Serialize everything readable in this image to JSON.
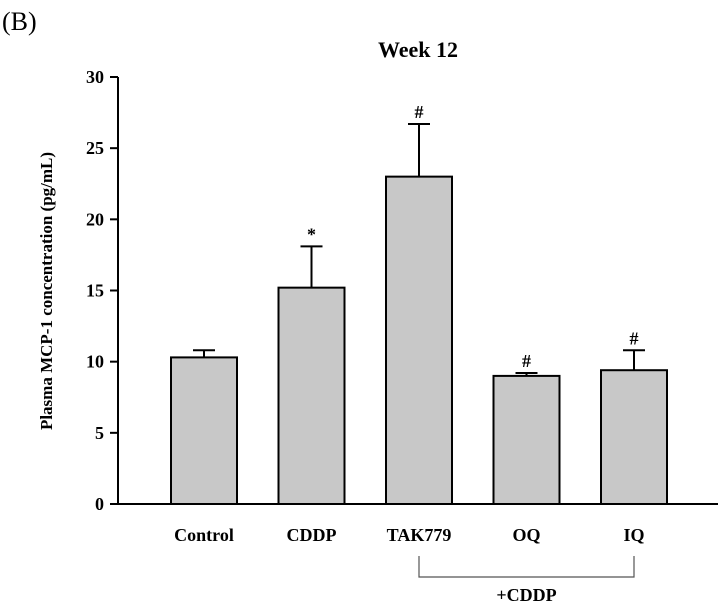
{
  "panel_label": "(B)",
  "chart_data": {
    "type": "bar",
    "title": "Week 12",
    "xlabel": "",
    "ylabel": "Plasma MCP-1 concentration (pg/mL)",
    "ylim": [
      0,
      30
    ],
    "yticks": [
      0,
      5,
      10,
      15,
      20,
      25,
      30
    ],
    "categories": [
      "Control",
      "CDDP",
      "TAK779",
      "OQ",
      "IQ"
    ],
    "values": [
      10.3,
      15.2,
      23.0,
      9.0,
      9.4
    ],
    "errors": [
      0.5,
      2.9,
      3.7,
      0.2,
      1.4
    ],
    "annotations": [
      "",
      "*",
      "#",
      "#",
      "#"
    ],
    "bar_color": "#c8c8c8",
    "grid": false,
    "group_label": "+CDDP",
    "group_span": [
      "TAK779",
      "IQ"
    ]
  }
}
